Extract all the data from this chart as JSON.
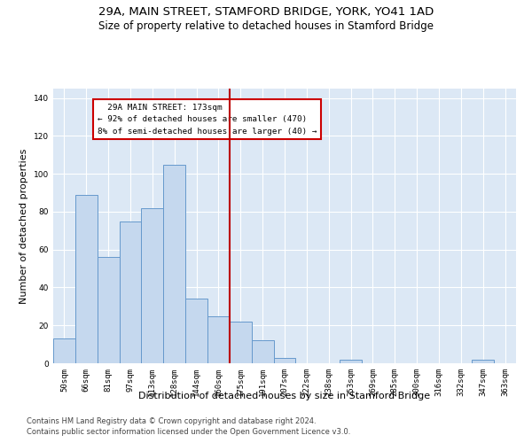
{
  "title": "29A, MAIN STREET, STAMFORD BRIDGE, YORK, YO41 1AD",
  "subtitle": "Size of property relative to detached houses in Stamford Bridge",
  "xlabel": "Distribution of detached houses by size in Stamford Bridge",
  "ylabel": "Number of detached properties",
  "categories": [
    "50sqm",
    "66sqm",
    "81sqm",
    "97sqm",
    "113sqm",
    "128sqm",
    "144sqm",
    "160sqm",
    "175sqm",
    "191sqm",
    "207sqm",
    "222sqm",
    "238sqm",
    "253sqm",
    "269sqm",
    "285sqm",
    "300sqm",
    "316sqm",
    "332sqm",
    "347sqm",
    "363sqm"
  ],
  "values": [
    13,
    89,
    56,
    75,
    82,
    105,
    34,
    25,
    22,
    12,
    3,
    0,
    0,
    2,
    0,
    0,
    0,
    0,
    0,
    2,
    0
  ],
  "bar_color": "#c5d8ee",
  "bar_edge_color": "#6699cc",
  "vline_color": "#bb0000",
  "annotation_title": "29A MAIN STREET: 173sqm",
  "annotation_line1": "← 92% of detached houses are smaller (470)",
  "annotation_line2": "8% of semi-detached houses are larger (40) →",
  "annotation_box_color": "#cc0000",
  "annotation_bg": "#ffffff",
  "ylim": [
    0,
    145
  ],
  "yticks": [
    0,
    20,
    40,
    60,
    80,
    100,
    120,
    140
  ],
  "background_color": "#dce8f5",
  "footer1": "Contains HM Land Registry data © Crown copyright and database right 2024.",
  "footer2": "Contains public sector information licensed under the Open Government Licence v3.0.",
  "title_fontsize": 9.5,
  "subtitle_fontsize": 8.5,
  "label_fontsize": 8,
  "tick_fontsize": 6.5,
  "footer_fontsize": 6.0
}
